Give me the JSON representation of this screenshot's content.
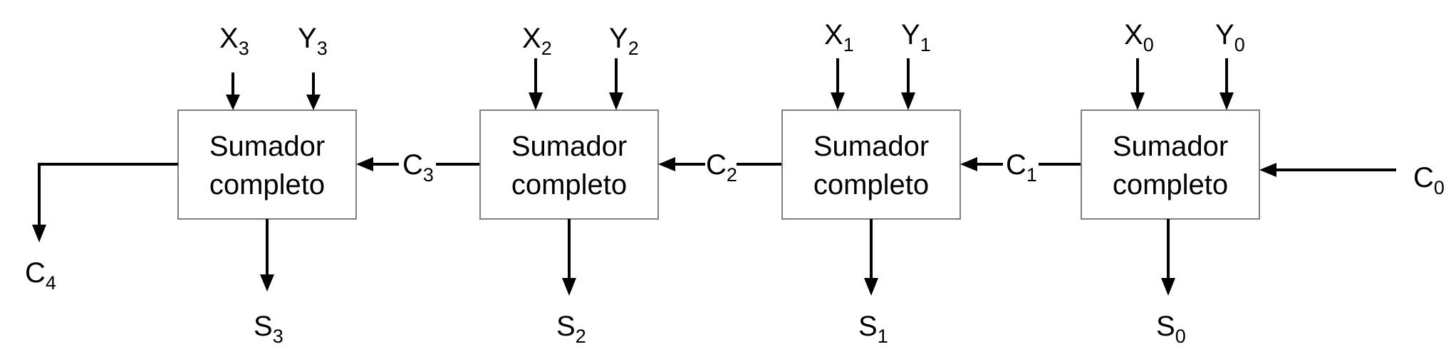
{
  "diagram": {
    "blocks": [
      {
        "line1": "Sumador",
        "line2": "completo",
        "x": {
          "base": "X",
          "sub": "3"
        },
        "y": {
          "base": "Y",
          "sub": "3"
        },
        "s": {
          "base": "S",
          "sub": "3"
        }
      },
      {
        "line1": "Sumador",
        "line2": "completo",
        "x": {
          "base": "X",
          "sub": "2"
        },
        "y": {
          "base": "Y",
          "sub": "2"
        },
        "s": {
          "base": "S",
          "sub": "2"
        }
      },
      {
        "line1": "Sumador",
        "line2": "completo",
        "x": {
          "base": "X",
          "sub": "1"
        },
        "y": {
          "base": "Y",
          "sub": "1"
        },
        "s": {
          "base": "S",
          "sub": "1"
        }
      },
      {
        "line1": "Sumador",
        "line2": "completo",
        "x": {
          "base": "X",
          "sub": "0"
        },
        "y": {
          "base": "Y",
          "sub": "0"
        },
        "s": {
          "base": "S",
          "sub": "0"
        }
      }
    ],
    "carries": {
      "c0": {
        "base": "C",
        "sub": "0"
      },
      "c1": {
        "base": "C",
        "sub": "1"
      },
      "c2": {
        "base": "C",
        "sub": "2"
      },
      "c3": {
        "base": "C",
        "sub": "3"
      },
      "c4": {
        "base": "C",
        "sub": "4"
      }
    }
  }
}
